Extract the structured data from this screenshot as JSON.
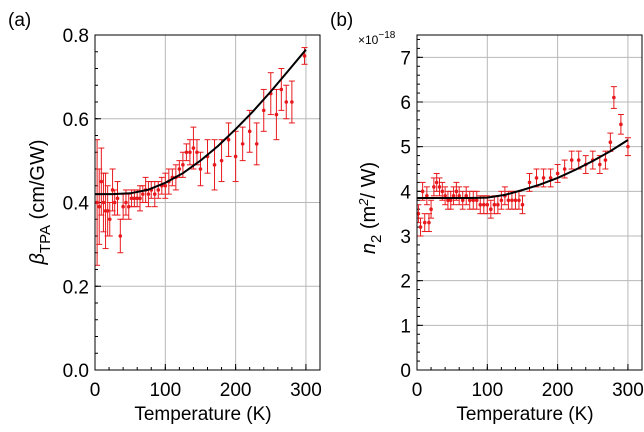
{
  "chart_data": [
    {
      "type": "scatter",
      "panel_label": "(a)",
      "xlabel": "Temperature (K)",
      "ylabel_main": "β",
      "ylabel_sub": "TPA",
      "ylabel_unit": " (cm/GW)",
      "xlim": [
        0,
        320
      ],
      "ylim": [
        0,
        0.8
      ],
      "xticks": [
        "0",
        "100",
        "200",
        "300"
      ],
      "xtick_values": [
        0,
        100,
        200,
        300
      ],
      "yticks": [
        "0.0",
        "0.2",
        "0.4",
        "0.6",
        "0.8"
      ],
      "ytick_values": [
        0,
        0.2,
        0.4,
        0.6,
        0.8
      ],
      "grid": true,
      "colors": {
        "data": "#e8191d",
        "fit": "#000000"
      },
      "series": [
        {
          "x": [
            3,
            6,
            9,
            12,
            15,
            18,
            21,
            25,
            28,
            32,
            36,
            40,
            44,
            48,
            52,
            56,
            60,
            64,
            68,
            72,
            76,
            80,
            85,
            90,
            95,
            100,
            105,
            110,
            115,
            120,
            125,
            130,
            135,
            140,
            145,
            150,
            160,
            170,
            180,
            190,
            200,
            210,
            220,
            230,
            240,
            250,
            258,
            265,
            272,
            280,
            298
          ],
          "y": [
            0.4,
            0.39,
            0.45,
            0.4,
            0.38,
            0.38,
            0.36,
            0.43,
            0.4,
            0.41,
            0.32,
            0.39,
            0.4,
            0.39,
            0.41,
            0.41,
            0.41,
            0.41,
            0.42,
            0.43,
            0.42,
            0.43,
            0.42,
            0.43,
            0.44,
            0.44,
            0.45,
            0.46,
            0.46,
            0.48,
            0.49,
            0.52,
            0.52,
            0.53,
            0.52,
            0.48,
            0.51,
            0.49,
            0.5,
            0.55,
            0.51,
            0.54,
            0.57,
            0.54,
            0.62,
            0.66,
            0.61,
            0.67,
            0.64,
            0.64,
            0.75
          ],
          "err": [
            0.15,
            0.09,
            0.08,
            0.07,
            0.09,
            0.06,
            0.04,
            0.05,
            0.03,
            0.04,
            0.04,
            0.03,
            0.03,
            0.03,
            0.02,
            0.02,
            0.02,
            0.03,
            0.02,
            0.03,
            0.03,
            0.02,
            0.03,
            0.02,
            0.02,
            0.03,
            0.03,
            0.02,
            0.03,
            0.02,
            0.03,
            0.02,
            0.03,
            0.05,
            0.03,
            0.04,
            0.04,
            0.06,
            0.05,
            0.04,
            0.06,
            0.04,
            0.05,
            0.05,
            0.05,
            0.05,
            0.06,
            0.05,
            0.04,
            0.05,
            0.02
          ]
        }
      ],
      "fit": {
        "x": [
          0,
          25,
          50,
          75,
          100,
          125,
          150,
          175,
          200,
          225,
          250,
          275,
          300
        ],
        "y": [
          0.42,
          0.42,
          0.422,
          0.43,
          0.447,
          0.47,
          0.5,
          0.535,
          0.575,
          0.618,
          0.665,
          0.715,
          0.765
        ]
      }
    },
    {
      "type": "scatter",
      "panel_label": "(b)",
      "xlabel": "Temperature (K)",
      "ylabel_main": "n",
      "ylabel_sub": "2",
      "ylabel_unit": " (m",
      "ylabel_sup": "2",
      "ylabel_tail": "/ W)",
      "multiplier_base": "×10",
      "multiplier_exp": "−18",
      "xlim": [
        0,
        320
      ],
      "ylim": [
        0,
        7.5
      ],
      "xticks": [
        "0",
        "100",
        "200",
        "300"
      ],
      "xtick_values": [
        0,
        100,
        200,
        300
      ],
      "yticks": [
        "0",
        "1",
        "2",
        "3",
        "4",
        "5",
        "6",
        "7"
      ],
      "ytick_values": [
        0,
        1,
        2,
        3,
        4,
        5,
        6,
        7
      ],
      "grid": true,
      "colors": {
        "data": "#e8191d",
        "fit": "#000000"
      },
      "series": [
        {
          "x": [
            2,
            5,
            8,
            11,
            14,
            17,
            20,
            24,
            28,
            32,
            36,
            40,
            44,
            48,
            52,
            56,
            60,
            65,
            70,
            75,
            80,
            85,
            90,
            95,
            100,
            105,
            110,
            115,
            120,
            125,
            130,
            135,
            140,
            145,
            150,
            160,
            170,
            180,
            190,
            200,
            210,
            220,
            230,
            240,
            250,
            260,
            268,
            275,
            280,
            290,
            300
          ],
          "y": [
            3.5,
            3.2,
            4.0,
            3.3,
            3.9,
            3.3,
            3.6,
            4.1,
            4.2,
            4.1,
            4.0,
            3.9,
            3.8,
            3.8,
            3.9,
            4.0,
            3.9,
            3.8,
            3.9,
            3.8,
            3.8,
            3.8,
            3.7,
            3.7,
            3.7,
            3.6,
            3.7,
            3.7,
            3.8,
            3.9,
            3.8,
            3.8,
            3.8,
            3.8,
            3.7,
            4.2,
            4.3,
            4.3,
            4.3,
            4.4,
            4.5,
            4.7,
            4.7,
            4.6,
            4.7,
            4.6,
            4.7,
            5.1,
            6.1,
            5.5,
            5.0
          ]
        }
      ],
      "fit": {
        "x": [
          0,
          25,
          50,
          75,
          100,
          125,
          150,
          175,
          200,
          225,
          250,
          275,
          300
        ],
        "y": [
          3.85,
          3.85,
          3.85,
          3.85,
          3.86,
          3.92,
          4.03,
          4.15,
          4.3,
          4.48,
          4.68,
          4.9,
          5.15
        ]
      }
    }
  ]
}
